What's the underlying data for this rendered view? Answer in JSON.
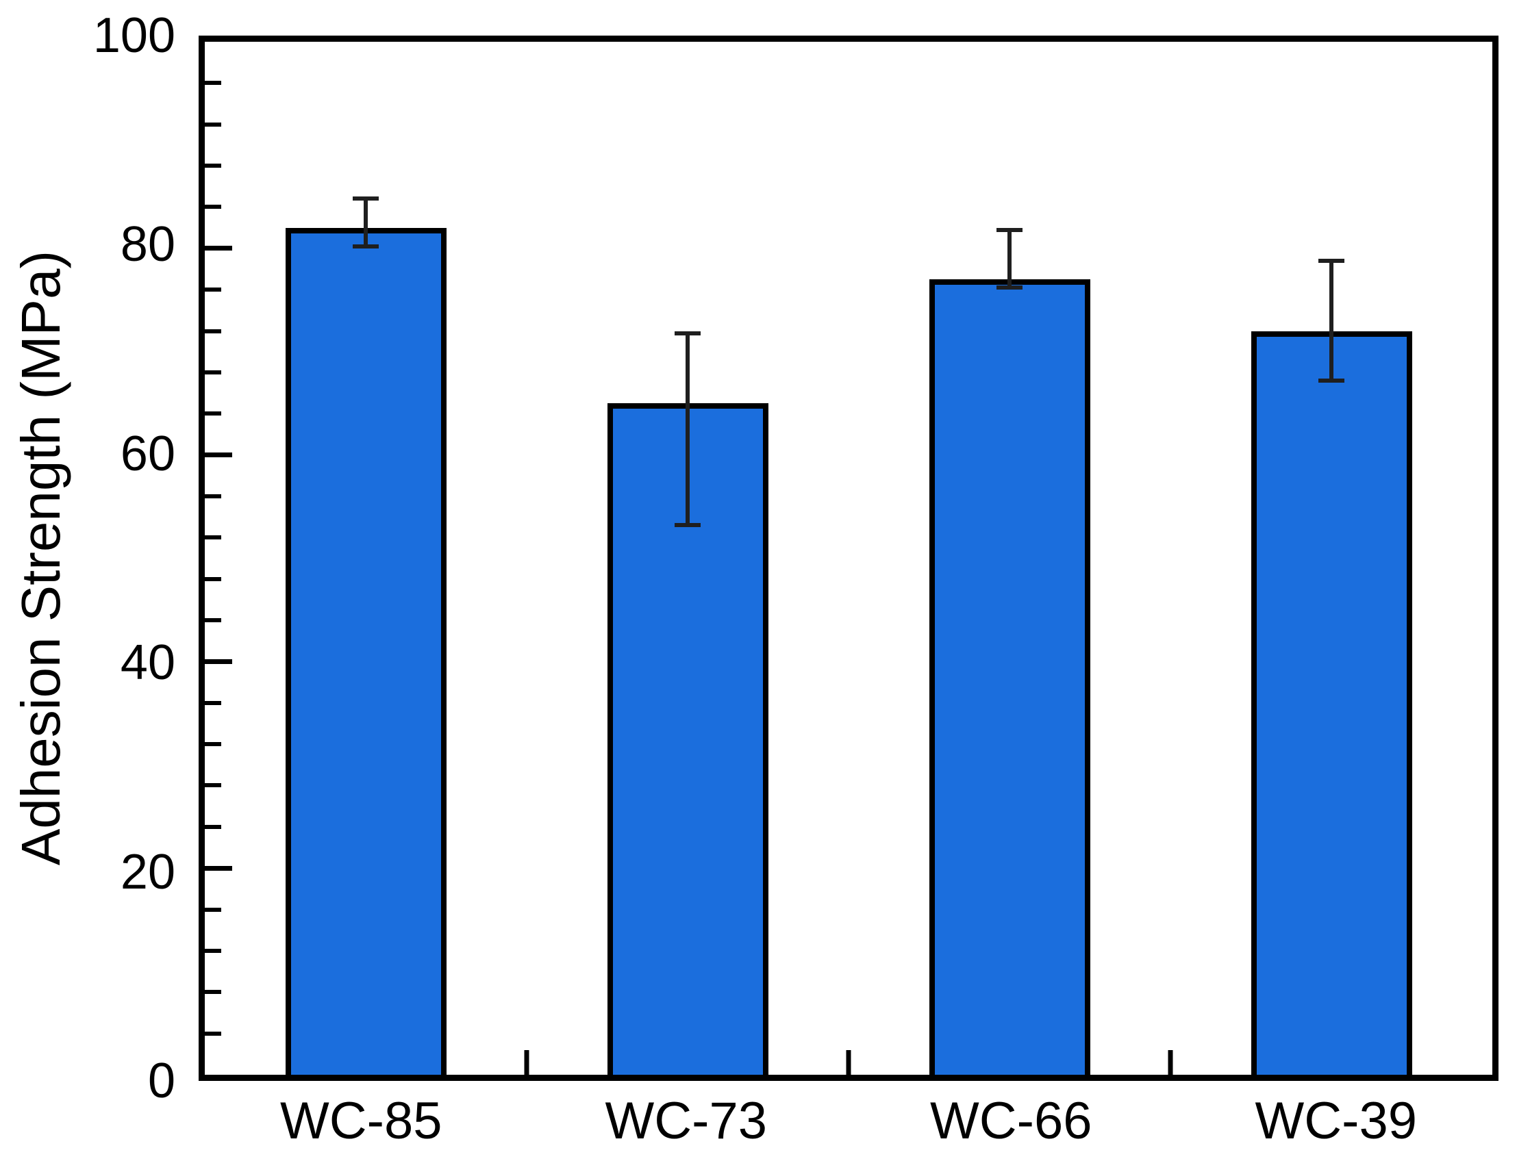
{
  "chart_data": {
    "type": "bar",
    "title": "",
    "ylabel": "Adhesion Strength (MPa)",
    "xlabel": "",
    "categories": [
      "WC-85",
      "WC-73",
      "WC-66",
      "WC-39"
    ],
    "values": [
      82,
      65,
      77,
      72
    ],
    "error_bars": {
      "upper": [
        85,
        72,
        82,
        79
      ],
      "lower": [
        80,
        53,
        76,
        67
      ]
    },
    "ylim": [
      0,
      100
    ],
    "y_major_ticks": [
      0,
      20,
      40,
      60,
      80,
      100
    ],
    "y_minor_interval": 4,
    "grid": "off",
    "legend": "none",
    "tick_direction": "in",
    "bar_color": "#1b6edd",
    "bar_border_color": "#000000",
    "error_bar_color": "#1f1f1f",
    "axis_color": "#000000",
    "background_color": "#ffffff"
  }
}
